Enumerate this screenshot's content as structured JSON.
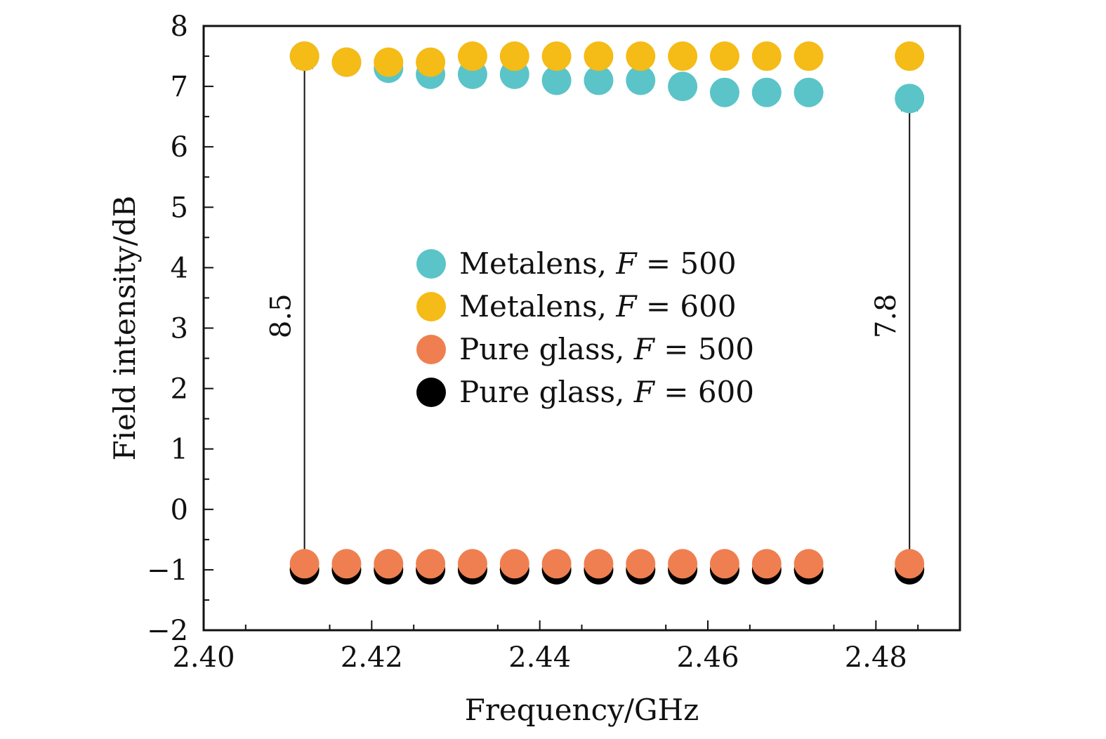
{
  "chart_data": {
    "type": "scatter",
    "xlabel": "Frequency/GHz",
    "ylabel": "Field intensity/dB",
    "xlim": [
      2.4,
      2.49
    ],
    "ylim": [
      -2,
      8
    ],
    "xticks": [
      2.4,
      2.42,
      2.44,
      2.46,
      2.48
    ],
    "xtick_labels": [
      "2.40",
      "2.42",
      "2.44",
      "2.46",
      "2.48"
    ],
    "yticks": [
      8,
      7,
      6,
      5,
      4,
      3,
      2,
      1,
      0,
      -1,
      -2
    ],
    "ytick_labels": [
      "8",
      "7",
      "6",
      "5",
      "4",
      "3",
      "2",
      "1",
      "0",
      "−1",
      "−2"
    ],
    "grid": false,
    "legend_position": "center",
    "series": [
      {
        "name": "Metalens, F = 500",
        "legend_prefix": "Metalens, ",
        "color": "#5bc4c8",
        "x": [
          2.412,
          2.417,
          2.422,
          2.427,
          2.432,
          2.437,
          2.442,
          2.447,
          2.452,
          2.457,
          2.462,
          2.467,
          2.472,
          2.484
        ],
        "y": [
          7.5,
          7.4,
          7.3,
          7.2,
          7.2,
          7.2,
          7.1,
          7.1,
          7.1,
          7.0,
          6.9,
          6.9,
          6.9,
          6.8
        ]
      },
      {
        "name": "Metalens, F = 600",
        "legend_prefix": "Metalens, ",
        "color": "#f5bb16",
        "x": [
          2.412,
          2.417,
          2.422,
          2.427,
          2.432,
          2.437,
          2.442,
          2.447,
          2.452,
          2.457,
          2.462,
          2.467,
          2.472,
          2.484
        ],
        "y": [
          7.5,
          7.4,
          7.4,
          7.4,
          7.5,
          7.5,
          7.5,
          7.5,
          7.5,
          7.5,
          7.5,
          7.5,
          7.5,
          7.5
        ]
      },
      {
        "name": "Pure glass, F = 600",
        "legend_prefix": "Pure glass, ",
        "color": "#000000",
        "x": [
          2.412,
          2.417,
          2.422,
          2.427,
          2.432,
          2.437,
          2.442,
          2.447,
          2.452,
          2.457,
          2.462,
          2.467,
          2.472,
          2.484
        ],
        "y": [
          -1.0,
          -1.0,
          -1.0,
          -1.0,
          -1.0,
          -1.0,
          -1.0,
          -1.0,
          -1.0,
          -1.0,
          -1.0,
          -1.0,
          -1.0,
          -1.0
        ]
      },
      {
        "name": "Pure glass, F = 500",
        "legend_prefix": "Pure glass, ",
        "color": "#ef7f50",
        "x": [
          2.412,
          2.417,
          2.422,
          2.427,
          2.432,
          2.437,
          2.442,
          2.447,
          2.452,
          2.457,
          2.462,
          2.467,
          2.472,
          2.484
        ],
        "y": [
          -0.9,
          -0.9,
          -0.9,
          -0.9,
          -0.9,
          -0.9,
          -0.9,
          -0.9,
          -0.9,
          -0.9,
          -0.9,
          -0.9,
          -0.9,
          -0.9
        ]
      }
    ],
    "legend_order": [
      0,
      1,
      3,
      2
    ],
    "legend_var": "F",
    "legend_eq": "=",
    "annotations": [
      {
        "text": "8.5",
        "x": 2.412,
        "y_from": -1.0,
        "y_to": 7.3
      },
      {
        "text": "7.8",
        "x": 2.484,
        "y_from": -1.0,
        "y_to": 6.6
      }
    ]
  }
}
